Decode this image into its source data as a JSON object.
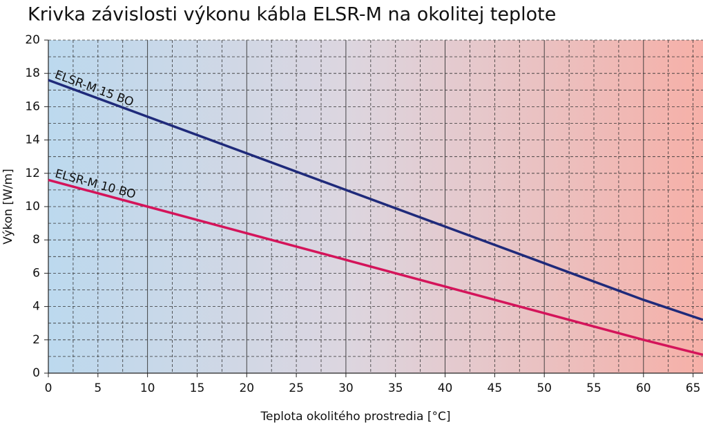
{
  "chart_data": {
    "type": "line",
    "title": "Krivka závislosti výkonu kábla ELSR-M na okolitej teplote",
    "x_label": "Teplota okolitého prostredia [°C]",
    "y_label": "Výkon [W/m]",
    "x": [
      0,
      10,
      20,
      30,
      40,
      50,
      60,
      66
    ],
    "series": [
      {
        "name": "ELSR-M 15 BO",
        "color": "#1f2a7a",
        "values": [
          17.6,
          15.4,
          13.2,
          11.0,
          8.8,
          6.6,
          4.4,
          3.2
        ]
      },
      {
        "name": "ELSR-M 10 BO",
        "color": "#d4145a",
        "values": [
          11.6,
          10.0,
          8.4,
          6.8,
          5.2,
          3.6,
          2.0,
          1.1
        ]
      }
    ],
    "xlim": [
      0,
      66
    ],
    "xticks": [
      0,
      5,
      10,
      15,
      20,
      25,
      30,
      35,
      40,
      45,
      50,
      55,
      60,
      65
    ],
    "ylim": [
      0,
      20
    ],
    "yticks": [
      0,
      2,
      4,
      6,
      8,
      10,
      12,
      14,
      16,
      18,
      20
    ],
    "grid": true
  }
}
